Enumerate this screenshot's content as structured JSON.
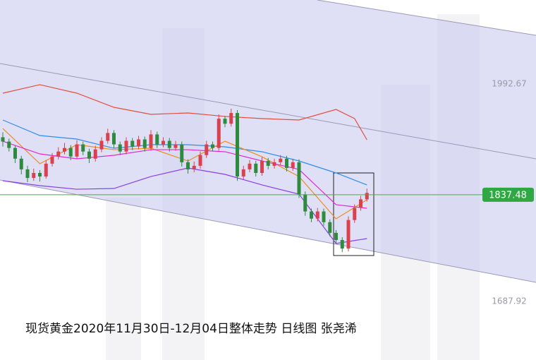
{
  "chart_data": {
    "type": "candlestick",
    "title": "现货黄金2020年11月30日-12月04日整体走势 日线图 张尧浠",
    "ylim": [
      1605.8,
      2110.4
    ],
    "yticks": [
      1687.92,
      1992.67
    ],
    "last_price": 1837.48,
    "up_color": "#d9414e",
    "down_color": "#2e8b3e",
    "candles": [
      [
        1918,
        1925,
        1905,
        1912
      ],
      [
        1912,
        1916,
        1898,
        1903
      ],
      [
        1903,
        1906,
        1882,
        1888
      ],
      [
        1888,
        1892,
        1866,
        1873
      ],
      [
        1873,
        1878,
        1855,
        1861
      ],
      [
        1861,
        1874,
        1857,
        1868
      ],
      [
        1868,
        1872,
        1856,
        1863
      ],
      [
        1863,
        1886,
        1860,
        1881
      ],
      [
        1881,
        1896,
        1877,
        1891
      ],
      [
        1891,
        1904,
        1887,
        1898
      ],
      [
        1898,
        1910,
        1894,
        1903
      ],
      [
        1903,
        1907,
        1886,
        1891
      ],
      [
        1891,
        1914,
        1888,
        1908
      ],
      [
        1908,
        1912,
        1893,
        1898
      ],
      [
        1898,
        1902,
        1882,
        1888
      ],
      [
        1888,
        1906,
        1884,
        1901
      ],
      [
        1901,
        1918,
        1897,
        1913
      ],
      [
        1913,
        1930,
        1909,
        1924
      ],
      [
        1924,
        1928,
        1903,
        1908
      ],
      [
        1908,
        1912,
        1893,
        1898
      ],
      [
        1898,
        1918,
        1894,
        1913
      ],
      [
        1913,
        1917,
        1900,
        1905
      ],
      [
        1905,
        1920,
        1901,
        1915
      ],
      [
        1915,
        1919,
        1898,
        1903
      ],
      [
        1903,
        1928,
        1899,
        1922
      ],
      [
        1922,
        1926,
        1903,
        1908
      ],
      [
        1908,
        1918,
        1904,
        1913
      ],
      [
        1913,
        1917,
        1898,
        1903
      ],
      [
        1903,
        1913,
        1899,
        1908
      ],
      [
        1908,
        1912,
        1877,
        1883
      ],
      [
        1883,
        1887,
        1867,
        1873
      ],
      [
        1873,
        1884,
        1869,
        1878
      ],
      [
        1878,
        1898,
        1874,
        1893
      ],
      [
        1893,
        1913,
        1889,
        1908
      ],
      [
        1908,
        1912,
        1898,
        1903
      ],
      [
        1903,
        1950,
        1899,
        1944
      ],
      [
        1944,
        1948,
        1932,
        1937
      ],
      [
        1937,
        1958,
        1933,
        1952
      ],
      [
        1952,
        1956,
        1857,
        1863
      ],
      [
        1863,
        1878,
        1859,
        1873
      ],
      [
        1873,
        1886,
        1869,
        1881
      ],
      [
        1881,
        1885,
        1863,
        1868
      ],
      [
        1868,
        1890,
        1864,
        1885
      ],
      [
        1885,
        1889,
        1873,
        1878
      ],
      [
        1878,
        1888,
        1874,
        1883
      ],
      [
        1883,
        1893,
        1879,
        1888
      ],
      [
        1888,
        1892,
        1870,
        1875
      ],
      [
        1875,
        1888,
        1871,
        1883
      ],
      [
        1883,
        1887,
        1833,
        1838
      ],
      [
        1838,
        1842,
        1808,
        1814
      ],
      [
        1814,
        1818,
        1799,
        1804
      ],
      [
        1804,
        1819,
        1800,
        1814
      ],
      [
        1814,
        1818,
        1794,
        1799
      ],
      [
        1799,
        1803,
        1779,
        1784
      ],
      [
        1784,
        1788,
        1769,
        1774
      ],
      [
        1774,
        1778,
        1757,
        1762
      ],
      [
        1762,
        1807,
        1758,
        1802
      ],
      [
        1802,
        1824,
        1798,
        1819
      ],
      [
        1819,
        1836,
        1815,
        1831
      ],
      [
        1831,
        1846,
        1828,
        1840
      ]
    ],
    "series": [
      {
        "color": "#e2503c",
        "x": [
          0,
          6,
          12,
          18,
          24,
          30,
          36,
          42,
          48,
          54,
          57,
          59
        ],
        "values": [
          1979.8,
          1991.7,
          1979.8,
          1960.0,
          1950.1,
          1952.1,
          1947.2,
          1944.2,
          1942.2,
          1957.0,
          1944.2,
          1914.5
        ]
      },
      {
        "color": "#8a3fe0",
        "x": [
          0,
          6,
          12,
          18,
          24,
          30,
          36,
          42,
          48,
          54,
          59
        ],
        "values": [
          1857.1,
          1850.2,
          1845.2,
          1846.2,
          1863.0,
          1874.9,
          1866.0,
          1851.2,
          1838.3,
          1769.1,
          1776.0
        ]
      },
      {
        "color": "#2f8fe8",
        "x": [
          0,
          6,
          12,
          18,
          24,
          30,
          36,
          42,
          48,
          54,
          59
        ],
        "values": [
          1942.2,
          1920.4,
          1915.5,
          1902.6,
          1907.6,
          1907.6,
          1904.6,
          1897.7,
          1884.8,
          1868.0,
          1851.2
        ]
      },
      {
        "color": "#f08c1e",
        "x": [
          0,
          6,
          12,
          18,
          24,
          30,
          36,
          42,
          48,
          54,
          59
        ],
        "values": [
          1930.3,
          1880.9,
          1907.6,
          1900.6,
          1902.6,
          1884.8,
          1912.5,
          1890.7,
          1863.0,
          1803.7,
          1830.4
        ]
      },
      {
        "color": "#e02ad0",
        "x": [
          0,
          6,
          12,
          18,
          24,
          30,
          36,
          42,
          48,
          54,
          59
        ],
        "values": [
          1912.5,
          1894.7,
          1887.8,
          1892.7,
          1900.6,
          1900.6,
          1897.7,
          1884.8,
          1872.9,
          1823.5,
          1818.5
        ]
      }
    ]
  }
}
